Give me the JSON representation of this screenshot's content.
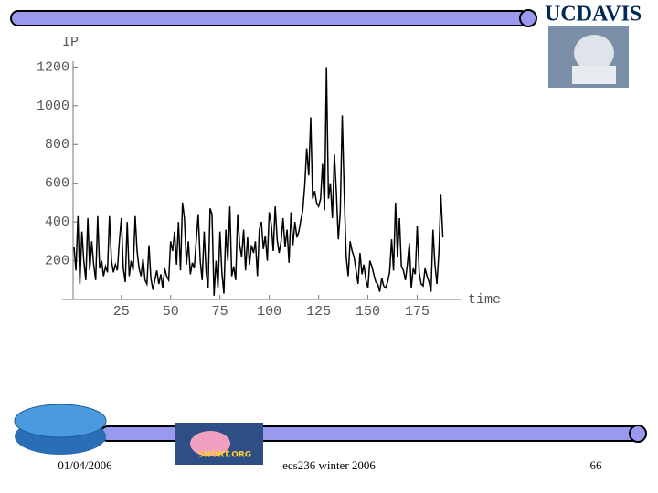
{
  "chart_data": {
    "type": "line",
    "y_label": "IP",
    "x_label": "time",
    "xlim": [
      -5,
      197
    ],
    "ylim": [
      0,
      1230
    ],
    "xticks": [
      25,
      50,
      75,
      100,
      125,
      150,
      175
    ],
    "yticks": [
      200,
      400,
      600,
      800,
      1000,
      1200
    ],
    "color": "#000000",
    "x": [
      1,
      2,
      3,
      4,
      5,
      6,
      7,
      8,
      9,
      10,
      11,
      12,
      13,
      14,
      15,
      16,
      17,
      18,
      19,
      20,
      21,
      22,
      23,
      24,
      25,
      26,
      27,
      28,
      29,
      30,
      31,
      32,
      33,
      34,
      35,
      36,
      37,
      38,
      39,
      40,
      41,
      42,
      43,
      44,
      45,
      46,
      47,
      48,
      49,
      50,
      51,
      52,
      53,
      54,
      55,
      56,
      57,
      58,
      59,
      60,
      61,
      62,
      63,
      64,
      65,
      66,
      67,
      68,
      69,
      70,
      71,
      72,
      73,
      74,
      75,
      76,
      77,
      78,
      79,
      80,
      81,
      82,
      83,
      84,
      85,
      86,
      87,
      88,
      89,
      90,
      91,
      92,
      93,
      94,
      95,
      96,
      97,
      98,
      99,
      100,
      101,
      102,
      103,
      104,
      105,
      106,
      107,
      108,
      109,
      110,
      111,
      112,
      113,
      114,
      115,
      116,
      117,
      118,
      119,
      120,
      121,
      122,
      123,
      124,
      125,
      126,
      127,
      128,
      129,
      130,
      131,
      132,
      133,
      134,
      135,
      136,
      137,
      138,
      139,
      140,
      141,
      142,
      143,
      144,
      145,
      146,
      147,
      148,
      149,
      150,
      151,
      152,
      153,
      154,
      155,
      156,
      157,
      158,
      159,
      160,
      161,
      162,
      163,
      164,
      165,
      166,
      167,
      168,
      169,
      170,
      171,
      172,
      173,
      174,
      175,
      176,
      177,
      178,
      179,
      180,
      181,
      182,
      183,
      184,
      185,
      186,
      187,
      188
    ],
    "values": [
      270,
      150,
      430,
      80,
      350,
      200,
      100,
      420,
      150,
      300,
      180,
      100,
      430,
      160,
      200,
      120,
      170,
      140,
      430,
      200,
      140,
      180,
      150,
      300,
      420,
      160,
      90,
      400,
      120,
      200,
      150,
      430,
      250,
      160,
      120,
      210,
      100,
      80,
      280,
      110,
      50,
      100,
      150,
      80,
      130,
      60,
      160,
      120,
      100,
      300,
      250,
      350,
      180,
      400,
      150,
      500,
      420,
      180,
      300,
      130,
      190,
      160,
      310,
      440,
      200,
      100,
      350,
      140,
      60,
      470,
      440,
      20,
      200,
      60,
      350,
      140,
      30,
      360,
      200,
      480,
      120,
      170,
      100,
      440,
      280,
      220,
      360,
      150,
      320,
      180,
      280,
      240,
      300,
      120,
      360,
      400,
      260,
      330,
      200,
      450,
      390,
      250,
      480,
      310,
      240,
      300,
      420,
      270,
      360,
      190,
      450,
      280,
      400,
      320,
      350,
      410,
      460,
      590,
      780,
      640,
      940,
      520,
      560,
      500,
      480,
      520,
      700,
      460,
      1200,
      520,
      600,
      420,
      750,
      560,
      310,
      450,
      950,
      540,
      220,
      120,
      300,
      250,
      220,
      150,
      80,
      240,
      130,
      180,
      100,
      60,
      200,
      170,
      130,
      90,
      80,
      40,
      110,
      70,
      60,
      90,
      140,
      310,
      150,
      500,
      220,
      420,
      170,
      150,
      100,
      180,
      290,
      60,
      160,
      130,
      380,
      140,
      80,
      70,
      160,
      120,
      90,
      40,
      360,
      180,
      80,
      250,
      540,
      320
    ]
  },
  "slide": {
    "logo": "UCDAVIS",
    "snort_logo": "SNORT.ORG",
    "date": "01/04/2006",
    "course": "ecs236 winter 2006",
    "page": "66"
  }
}
